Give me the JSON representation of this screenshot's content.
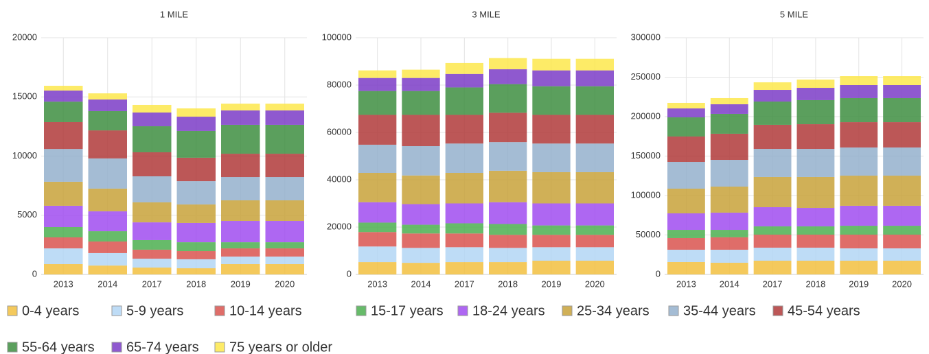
{
  "chart_data": [
    {
      "type": "bar",
      "stacked": true,
      "title": "1 MILE",
      "grid": true,
      "categories": [
        "2013",
        "2014",
        "2017",
        "2018",
        "2019",
        "2020"
      ],
      "ylim": [
        0,
        20000
      ],
      "yticks": [
        0,
        5000,
        10000,
        15000,
        20000
      ],
      "series": [
        {
          "name": "0-4 years",
          "color": "#f2c040",
          "values": [
            870,
            750,
            580,
            520,
            870,
            870
          ]
        },
        {
          "name": "5-9 years",
          "color": "#b3d6f5",
          "values": [
            1330,
            1050,
            750,
            760,
            640,
            640
          ]
        },
        {
          "name": "10-14 years",
          "color": "#d9534f",
          "values": [
            930,
            980,
            760,
            690,
            690,
            690
          ]
        },
        {
          "name": "15-17 years",
          "color": "#4caf50",
          "values": [
            870,
            870,
            810,
            750,
            520,
            520
          ]
        },
        {
          "name": "18-24 years",
          "color": "#a04cf0",
          "values": [
            1800,
            1680,
            1500,
            1630,
            1800,
            1800
          ]
        },
        {
          "name": "25-34 years",
          "color": "#c8a23a",
          "values": [
            2030,
            1920,
            1690,
            1560,
            1740,
            1740
          ]
        },
        {
          "name": "35-44 years",
          "color": "#94b0cc",
          "values": [
            2770,
            2550,
            2200,
            1970,
            1970,
            1970
          ]
        },
        {
          "name": "45-54 years",
          "color": "#b03a3a",
          "values": [
            2270,
            2370,
            2030,
            1980,
            1970,
            1970
          ]
        },
        {
          "name": "55-64 years",
          "color": "#3e8e41",
          "values": [
            1730,
            1630,
            2200,
            2260,
            2440,
            2440
          ]
        },
        {
          "name": "65-74 years",
          "color": "#7b3cc7",
          "values": [
            940,
            980,
            1160,
            1210,
            1220,
            1220
          ]
        },
        {
          "name": "75 years or older",
          "color": "#fde74c",
          "values": [
            400,
            520,
            640,
            700,
            570,
            570
          ]
        }
      ]
    },
    {
      "type": "bar",
      "stacked": true,
      "title": "3 MILE",
      "grid": true,
      "categories": [
        "2013",
        "2014",
        "2017",
        "2018",
        "2019",
        "2020"
      ],
      "ylim": [
        0,
        100000
      ],
      "yticks": [
        0,
        20000,
        40000,
        60000,
        80000,
        100000
      ],
      "series": [
        {
          "values": [
            5200,
            4900,
            5200,
            5200,
            5800,
            5800
          ]
        },
        {
          "values": [
            6600,
            6300,
            6300,
            6000,
            5700,
            5700
          ]
        },
        {
          "values": [
            6100,
            6100,
            5800,
            5500,
            5200,
            5200
          ]
        },
        {
          "values": [
            4000,
            3700,
            4300,
            4600,
            4000,
            4000
          ]
        },
        {
          "values": [
            8600,
            8700,
            8400,
            9200,
            9300,
            9300
          ]
        },
        {
          "values": [
            12400,
            12100,
            12900,
            13300,
            13200,
            13200
          ]
        },
        {
          "values": [
            11900,
            12400,
            12400,
            12100,
            12100,
            12100
          ]
        },
        {
          "values": [
            12600,
            13200,
            12100,
            12400,
            12100,
            12100
          ]
        },
        {
          "values": [
            10100,
            10100,
            11600,
            12100,
            12100,
            12100
          ]
        },
        {
          "values": [
            5500,
            5500,
            5700,
            6300,
            6700,
            6700
          ]
        },
        {
          "values": [
            3200,
            3500,
            4600,
            4700,
            4900,
            4900
          ]
        }
      ]
    },
    {
      "type": "bar",
      "stacked": true,
      "title": "5 MILE",
      "grid": true,
      "categories": [
        "2013",
        "2014",
        "2017",
        "2018",
        "2019",
        "2020"
      ],
      "ylim": [
        0,
        300000
      ],
      "yticks": [
        0,
        50000,
        100000,
        150000,
        200000,
        250000,
        300000
      ],
      "series": [
        {
          "values": [
            15700,
            14800,
            17400,
            17400,
            17400,
            17400
          ]
        },
        {
          "values": [
            15600,
            16500,
            16500,
            16500,
            15600,
            15600
          ]
        },
        {
          "values": [
            14800,
            15700,
            16500,
            16500,
            17400,
            17400
          ]
        },
        {
          "values": [
            10400,
            9500,
            10500,
            10500,
            11300,
            11300
          ]
        },
        {
          "values": [
            20900,
            21800,
            24300,
            23400,
            25300,
            25300
          ]
        },
        {
          "values": [
            31300,
            33000,
            38300,
            39200,
            38200,
            38200
          ]
        },
        {
          "values": [
            33900,
            33900,
            35600,
            35600,
            35700,
            35700
          ]
        },
        {
          "values": [
            32200,
            33100,
            30500,
            31300,
            32100,
            32100
          ]
        },
        {
          "values": [
            24300,
            25200,
            29500,
            30500,
            30500,
            30500
          ]
        },
        {
          "values": [
            11300,
            12200,
            14800,
            15600,
            16500,
            16500
          ]
        },
        {
          "values": [
            7000,
            7800,
            9600,
            10500,
            11300,
            11300
          ]
        }
      ]
    }
  ]
}
